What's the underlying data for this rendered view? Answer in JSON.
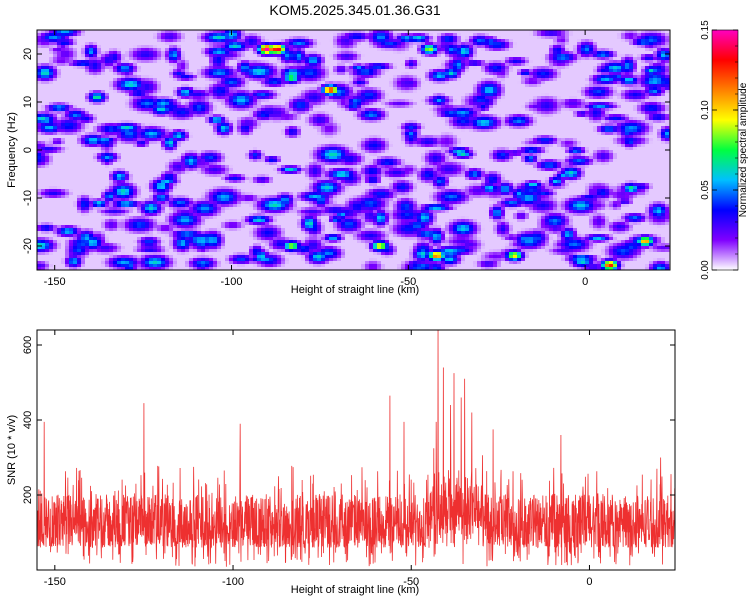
{
  "title": "KOM5.2025.345.01.36.G31",
  "chart_data": [
    {
      "type": "heatmap",
      "title": "KOM5.2025.345.01.36.G31",
      "xlabel": "Height of straight line (km)",
      "ylabel": "Frequency (Hz)",
      "xlim": [
        -155,
        24
      ],
      "ylim": [
        -25,
        25
      ],
      "x_ticks": [
        "-150",
        "-100",
        "-50",
        "0"
      ],
      "x_tick_values": [
        -150,
        -100,
        -50,
        0
      ],
      "y_ticks": [
        "-20",
        "-10",
        "0",
        "10",
        "20"
      ],
      "y_tick_values": [
        -20,
        -10,
        0,
        10,
        20
      ],
      "colorbar": {
        "label": "Normalized spectral amplitude",
        "range": [
          0.0,
          0.15
        ],
        "ticks": [
          "0.00",
          "0.05",
          "0.10",
          "0.15"
        ],
        "tick_values": [
          0.0,
          0.05,
          0.1,
          0.15
        ],
        "colors": [
          "#ffffff",
          "#8000ff",
          "#0000ff",
          "#00c0ff",
          "#00ff40",
          "#ffff00",
          "#ff8000",
          "#ff0000",
          "#ff00c0"
        ]
      },
      "hotspots": [
        {
          "x": -90,
          "y": 21,
          "v": 0.15
        },
        {
          "x": -87,
          "y": 21,
          "v": 0.14
        },
        {
          "x": -72,
          "y": 12.5,
          "v": 0.13
        },
        {
          "x": -42,
          "y": -22,
          "v": 0.12
        },
        {
          "x": 7,
          "y": -24,
          "v": 0.13
        },
        {
          "x": 17,
          "y": -19,
          "v": 0.11
        },
        {
          "x": -58,
          "y": -20,
          "v": 0.1
        },
        {
          "x": -83,
          "y": -20,
          "v": 0.09
        },
        {
          "x": -20,
          "y": -22,
          "v": 0.1
        },
        {
          "x": -44,
          "y": 21,
          "v": 0.09
        },
        {
          "x": -83,
          "y": 15,
          "v": 0.08
        },
        {
          "x": -138,
          "y": 11,
          "v": 0.07
        },
        {
          "x": 13,
          "y": -8,
          "v": 0.07
        },
        {
          "x": -27,
          "y": -8,
          "v": 0.06
        },
        {
          "x": -113,
          "y": 12,
          "v": 0.06
        },
        {
          "x": -115,
          "y": 3,
          "v": 0.06
        }
      ]
    },
    {
      "type": "line",
      "xlabel": "Height of straight line (km)",
      "ylabel": "SNR (10 * v/v)",
      "xlim": [
        -155,
        24
      ],
      "ylim": [
        0,
        640
      ],
      "x_ticks": [
        "-150",
        "-100",
        "-50",
        "0"
      ],
      "x_tick_values": [
        -150,
        -100,
        -50,
        0
      ],
      "y_ticks": [
        "200",
        "400",
        "600"
      ],
      "y_tick_values": [
        200,
        400,
        600
      ],
      "line_color": "#ee3030",
      "noise_band": [
        60,
        250
      ],
      "peaks": [
        {
          "x": -153,
          "y": 395
        },
        {
          "x": -125,
          "y": 445
        },
        {
          "x": -98,
          "y": 390
        },
        {
          "x": -56,
          "y": 465
        },
        {
          "x": -52,
          "y": 395
        },
        {
          "x": -43,
          "y": 395
        },
        {
          "x": -42.5,
          "y": 640
        },
        {
          "x": -41,
          "y": 540
        },
        {
          "x": -39,
          "y": 440
        },
        {
          "x": -38,
          "y": 525
        },
        {
          "x": -36,
          "y": 460
        },
        {
          "x": -35,
          "y": 510
        },
        {
          "x": -33,
          "y": 420
        },
        {
          "x": -27,
          "y": 375
        },
        {
          "x": -8,
          "y": 360
        },
        {
          "x": 20,
          "y": 300
        }
      ]
    }
  ]
}
